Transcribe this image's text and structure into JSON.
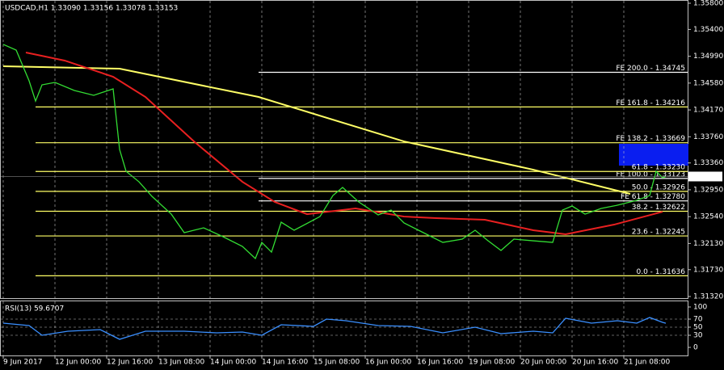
{
  "chart_data": [
    {
      "type": "line",
      "title": "USDCAD,H1 1.33090 1.33156 1.33078 1.33153",
      "xlim": [
        0,
        212
      ],
      "xticks": [
        {
          "value": 0,
          "label": "9 Jun 2017"
        },
        {
          "value": 16,
          "label": "12 Jun 00:00"
        },
        {
          "value": 32,
          "label": "12 Jun 16:00"
        },
        {
          "value": 48,
          "label": "13 Jun 08:00"
        },
        {
          "value": 64,
          "label": "14 Jun 00:00"
        },
        {
          "value": 80,
          "label": "14 Jun 16:00"
        },
        {
          "value": 96,
          "label": "15 Jun 08:00"
        },
        {
          "value": 112,
          "label": "16 Jun 00:00"
        },
        {
          "value": 128,
          "label": "16 Jun 16:00"
        },
        {
          "value": 144,
          "label": "19 Jun 08:00"
        },
        {
          "value": 160,
          "label": "20 Jun 00:00"
        },
        {
          "value": 176,
          "label": "20 Jun 16:00"
        },
        {
          "value": 192,
          "label": "21 Jun 08:00"
        }
      ],
      "ylim": [
        1.3132,
        1.358
      ],
      "yticks": [
        {
          "value": 1.358,
          "label": "1.35800"
        },
        {
          "value": 1.354,
          "label": "1.35400"
        },
        {
          "value": 1.3499,
          "label": "1.34990"
        },
        {
          "value": 1.3458,
          "label": "1.34580"
        },
        {
          "value": 1.3417,
          "label": "1.34170"
        },
        {
          "value": 1.3376,
          "label": "1.33760"
        },
        {
          "value": 1.3336,
          "label": "1.33360"
        },
        {
          "value": 1.3295,
          "label": "1.32950"
        },
        {
          "value": 1.3254,
          "label": "1.32540"
        },
        {
          "value": 1.3213,
          "label": "1.32130"
        },
        {
          "value": 1.3173,
          "label": "1.31730"
        },
        {
          "value": 1.3132,
          "label": "1.31320"
        }
      ],
      "last_price": 1.33153,
      "series": [
        {
          "color": "#ffff66",
          "x": [
            0,
            36,
            79,
            124,
            164,
            194
          ],
          "values": [
            1.34837,
            1.348,
            1.34368,
            1.33689,
            1.33257,
            1.32887
          ]
        },
        {
          "color": "#e82020",
          "x": [
            7,
            19,
            34,
            44,
            59,
            74,
            84,
            94,
            109,
            124,
            134,
            149,
            164,
            174,
            189,
            204
          ],
          "values": [
            1.35047,
            1.34924,
            1.34677,
            1.34368,
            1.33689,
            1.33072,
            1.32764,
            1.32578,
            1.32665,
            1.32541,
            1.32517,
            1.32492,
            1.32332,
            1.3227,
            1.32418,
            1.32615
          ]
        },
        {
          "color": "#33dd33",
          "x": [
            0,
            4,
            8,
            10,
            12,
            16,
            22,
            28,
            34,
            36,
            38,
            42,
            46,
            52,
            56,
            62,
            68,
            74,
            78,
            80,
            83,
            86,
            90,
            98,
            102,
            105,
            110,
            116,
            120,
            124,
            130,
            136,
            142,
            146,
            150,
            154,
            158,
            164,
            170,
            173,
            176,
            180,
            185,
            190,
            196,
            200,
            202,
            204,
            205
          ],
          "values": [
            1.35171,
            1.35084,
            1.34615,
            1.34306,
            1.34553,
            1.3459,
            1.34467,
            1.34393,
            1.34492,
            1.33566,
            1.33233,
            1.33072,
            1.3285,
            1.32578,
            1.32295,
            1.32369,
            1.32233,
            1.32085,
            1.319,
            1.32146,
            1.31998,
            1.32455,
            1.32332,
            1.32541,
            1.32862,
            1.32986,
            1.32764,
            1.32566,
            1.3264,
            1.32443,
            1.32295,
            1.32146,
            1.32196,
            1.32332,
            1.32171,
            1.32023,
            1.32196,
            1.32171,
            1.32146,
            1.3264,
            1.32702,
            1.32578,
            1.32665,
            1.32714,
            1.32788,
            1.32862,
            1.33233,
            1.33134,
            1.33153
          ]
        }
      ],
      "levels": [
        {
          "label": "FE 200.0 - 1.34745",
          "value": 1.34745,
          "color": "#ffffff"
        },
        {
          "label": "FE 161.8 - 1.34216",
          "value": 1.34216,
          "color": "#ffff66"
        },
        {
          "label": "FE 138.2 - 1.33669",
          "value": 1.33669,
          "color": "#ffff66"
        },
        {
          "label": "FE 100.0 - 1.33123",
          "value": 1.33123,
          "color": "#ffffff"
        },
        {
          "label": "61.8 - 1.33230",
          "value": 1.3323,
          "color": "#ffff66"
        },
        {
          "label": "50.0 - 1.32926",
          "value": 1.32926,
          "color": "#ffff66"
        },
        {
          "label": "FE 61.8 - 1.32780",
          "value": 1.3278,
          "color": "#ffffff"
        },
        {
          "label": "38.2 - 1.32622",
          "value": 1.32622,
          "color": "#ffff66"
        },
        {
          "label": "23.6 - 1.32245",
          "value": 1.32245,
          "color": "#ffff66"
        },
        {
          "label": "0.0 - 1.31636",
          "value": 1.31636,
          "color": "#ffff66"
        }
      ]
    },
    {
      "type": "line",
      "title": "RSI(13) 59.6707",
      "ylim": [
        0,
        100
      ],
      "yticks": [
        0,
        30,
        50,
        70,
        100
      ],
      "series": [
        {
          "color": "#3a8fff",
          "x": [
            0,
            8,
            12,
            20,
            30,
            36,
            44,
            56,
            66,
            74,
            80,
            86,
            96,
            100,
            106,
            116,
            126,
            136,
            146,
            154,
            164,
            170,
            174,
            182,
            190,
            196,
            200,
            204,
            205
          ],
          "values": [
            60,
            54,
            30,
            40,
            44,
            20,
            40,
            40,
            36,
            38,
            30,
            56,
            52,
            70,
            66,
            54,
            52,
            36,
            50,
            34,
            40,
            36,
            72,
            60,
            66,
            60,
            74,
            62,
            59.6707
          ]
        }
      ]
    }
  ]
}
